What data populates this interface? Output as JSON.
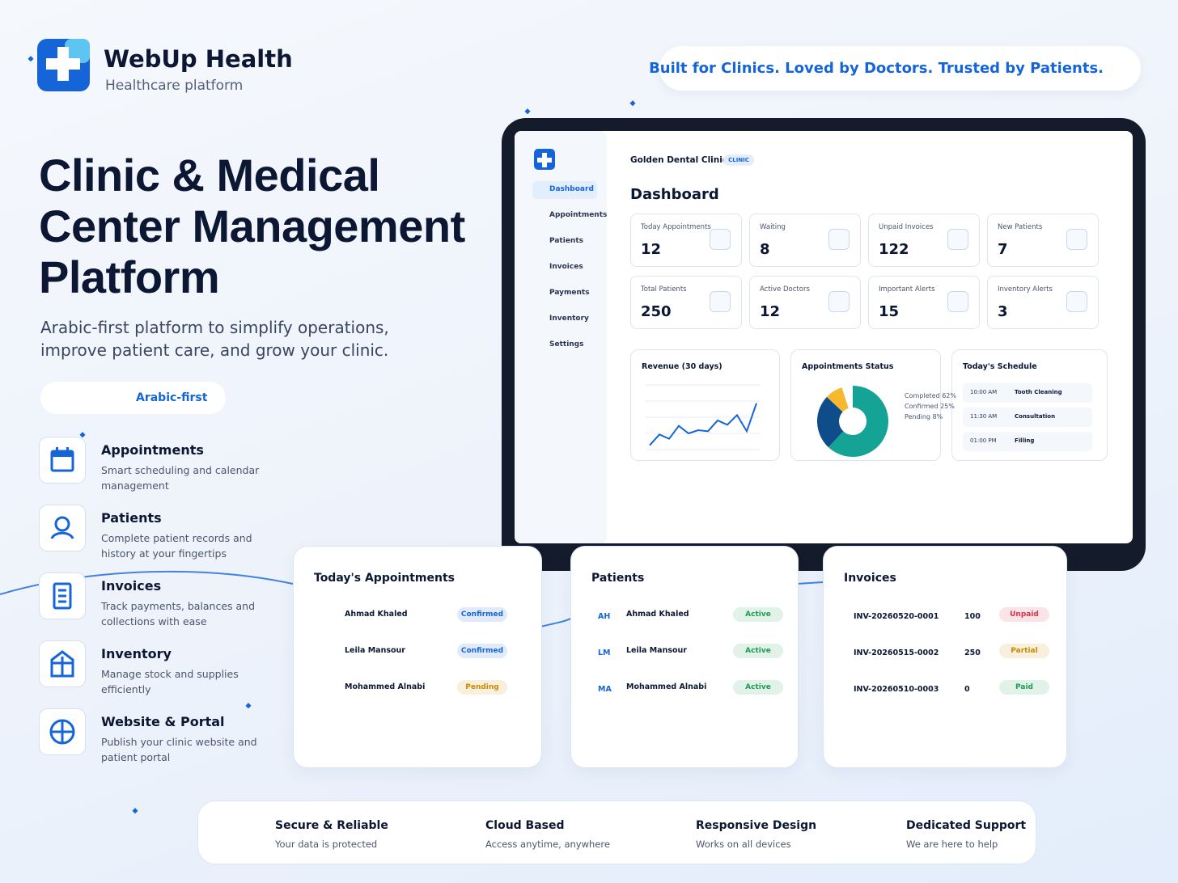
{
  "brand": {
    "name": "WebUp Health",
    "tagline": "Healthcare platform"
  },
  "slogan": "Built for Clinics. Loved by Doctors. Trusted by Patients.",
  "hero": {
    "title_lines": [
      "Clinic & Medical",
      "Center Management",
      "Platform"
    ],
    "subtitle_lines": [
      "Arabic-first platform to simplify operations,",
      "improve patient care, and grow your clinic."
    ],
    "badge": "Arabic-first"
  },
  "features": [
    {
      "title": "Appointments",
      "text": "Smart scheduling and calendar management"
    },
    {
      "title": "Patients",
      "text": "Complete patient records and history at your fingertips"
    },
    {
      "title": "Invoices",
      "text": "Track payments, balances and collections with ease"
    },
    {
      "title": "Inventory",
      "text": "Manage stock and supplies efficiently"
    },
    {
      "title": "Website & Portal",
      "text": "Publish your clinic website and patient portal"
    }
  ],
  "dashboard": {
    "clinic": "Golden Dental Clinic",
    "clinic_tag": "CLINIC",
    "nav": [
      "Dashboard",
      "Appointments",
      "Patients",
      "Invoices",
      "Payments",
      "Inventory",
      "Settings"
    ],
    "title": "Dashboard",
    "stats": [
      {
        "label": "Today Appointments",
        "value": 12
      },
      {
        "label": "Waiting",
        "value": 8
      },
      {
        "label": "Unpaid Invoices",
        "value": 122
      },
      {
        "label": "New Patients",
        "value": 7
      },
      {
        "label": "Total Patients",
        "value": 250
      },
      {
        "label": "Active Doctors",
        "value": 12
      },
      {
        "label": "Important Alerts",
        "value": 15
      },
      {
        "label": "Inventory Alerts",
        "value": 3
      }
    ],
    "revenue": {
      "type": "line",
      "title": "Revenue (30 days)",
      "color": "#1565d8",
      "values": [
        4,
        14,
        10,
        22,
        15,
        18,
        17,
        27,
        23,
        32,
        17,
        43
      ],
      "ylim": [
        0,
        60
      ]
    },
    "status": {
      "type": "pie",
      "title": "Appointments Status",
      "series": [
        {
          "name": "Completed",
          "color": "#14a394",
          "value": 62,
          "value_label": "62%"
        },
        {
          "name": "Confirmed",
          "color": "#0f4c8a",
          "value": 25,
          "value_label": "25%"
        },
        {
          "name": "Pending",
          "color": "#f5b82e",
          "value": 8,
          "value_label": "8%"
        }
      ]
    },
    "schedule": {
      "title": "Today's Schedule",
      "items": [
        {
          "time": "10:00 AM",
          "name": "Tooth Cleaning"
        },
        {
          "time": "11:30 AM",
          "name": "Consultation"
        },
        {
          "time": "01:00 PM",
          "name": "Filling"
        }
      ]
    }
  },
  "appointments": {
    "title": "Today's Appointments",
    "rows": [
      {
        "name": "Ahmad Khaled",
        "status": "Confirmed",
        "color": "#1565d8"
      },
      {
        "name": "Leila Mansour",
        "status": "Confirmed",
        "color": "#1565d8"
      },
      {
        "name": "Mohammed Alnabi",
        "status": "Pending",
        "color": "#c98a00"
      }
    ]
  },
  "patients": {
    "title": "Patients",
    "rows": [
      {
        "initials": "AH",
        "name": "Ahmad Khaled",
        "status": "Active",
        "color": "#1f9a55"
      },
      {
        "initials": "LM",
        "name": "Leila Mansour",
        "status": "Active",
        "color": "#1f9a55"
      },
      {
        "initials": "MA",
        "name": "Mohammed Alnabi",
        "status": "Active",
        "color": "#1f9a55"
      }
    ]
  },
  "invoices": {
    "title": "Invoices",
    "rows": [
      {
        "id": "INV-20260520-0001",
        "amount": 100,
        "status": "Unpaid",
        "color": "#d6334a"
      },
      {
        "id": "INV-20260515-0002",
        "amount": 250,
        "status": "Partial",
        "color": "#c98a00"
      },
      {
        "id": "INV-20260510-0003",
        "amount": 0,
        "status": "Paid",
        "color": "#1f9a55"
      }
    ]
  },
  "footer": [
    {
      "title": "Secure & Reliable",
      "text": "Your data is protected"
    },
    {
      "title": "Cloud Based",
      "text": "Access anytime, anywhere"
    },
    {
      "title": "Responsive Design",
      "text": "Works on all devices"
    },
    {
      "title": "Dedicated Support",
      "text": "We are here to help"
    }
  ]
}
